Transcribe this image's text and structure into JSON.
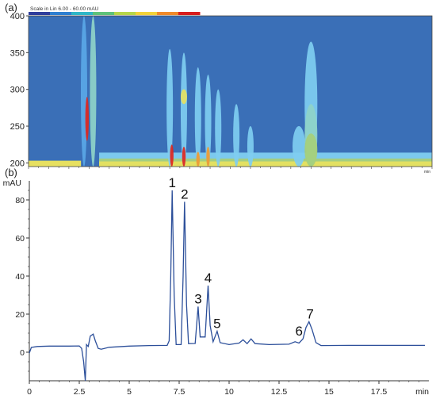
{
  "chart_data": [
    {
      "panel_label": "(a)",
      "type": "heatmap",
      "scale_label": "Scale in Lin 6.00 - 60.00 mAU",
      "colors": {
        "background": "#3a6fb7",
        "levels": [
          "#3a6fb7",
          "#5aa7e6",
          "#7fcdf0",
          "#8fd3c8",
          "#a6cf7a",
          "#e7e060",
          "#f29a2e",
          "#e0261e"
        ]
      },
      "colorbar": [
        "#2f3e9c",
        "#2e7fd0",
        "#2fb6c7",
        "#5fc27a",
        "#b7d64a",
        "#f2d23a",
        "#f08a2a",
        "#d81e1e"
      ],
      "y_axis": {
        "ticks": [
          "200",
          "250",
          "300",
          "350",
          "400"
        ],
        "range": [
          195,
          400
        ]
      },
      "x_axis": {
        "range": [
          0,
          20
        ],
        "end_label": "min"
      },
      "bands": [
        {
          "t": 2.75,
          "lo": 195,
          "hi": 400,
          "level": 1
        },
        {
          "t": 2.9,
          "lo": 230,
          "hi": 290,
          "level": 7
        },
        {
          "t": 3.2,
          "lo": 195,
          "hi": 400,
          "level": 3
        },
        {
          "t": 7.0,
          "lo": 195,
          "hi": 355,
          "level": 2
        },
        {
          "t": 7.1,
          "lo": 195,
          "hi": 225,
          "level": 7
        },
        {
          "t": 7.7,
          "lo": 195,
          "hi": 350,
          "level": 2
        },
        {
          "t": 7.7,
          "lo": 280,
          "hi": 300,
          "level": 5
        },
        {
          "t": 7.7,
          "lo": 195,
          "hi": 222,
          "level": 7
        },
        {
          "t": 8.4,
          "lo": 195,
          "hi": 330,
          "level": 2
        },
        {
          "t": 8.4,
          "lo": 195,
          "hi": 215,
          "level": 6
        },
        {
          "t": 8.9,
          "lo": 195,
          "hi": 320,
          "level": 2
        },
        {
          "t": 8.9,
          "lo": 195,
          "hi": 222,
          "level": 6
        },
        {
          "t": 9.4,
          "lo": 195,
          "hi": 300,
          "level": 2
        },
        {
          "t": 10.3,
          "lo": 195,
          "hi": 280,
          "level": 2
        },
        {
          "t": 11.0,
          "lo": 195,
          "hi": 250,
          "level": 2
        },
        {
          "t": 13.4,
          "lo": 195,
          "hi": 250,
          "level": 2
        },
        {
          "t": 14.0,
          "lo": 195,
          "hi": 365,
          "level": 2
        },
        {
          "t": 14.0,
          "lo": 195,
          "hi": 280,
          "level": 3
        },
        {
          "t": 14.0,
          "lo": 195,
          "hi": 240,
          "level": 4
        }
      ]
    },
    {
      "panel_label": "(b)",
      "type": "line",
      "ylabel": "mAU",
      "xlabel": "min",
      "xlim": [
        0,
        20
      ],
      "ylim": [
        -15,
        90
      ],
      "x_ticks": [
        "0",
        "2.5",
        "5",
        "7.5",
        "10",
        "12.5",
        "15",
        "17.5",
        "min"
      ],
      "y_ticks": [
        "0",
        "20",
        "40",
        "60",
        "80"
      ],
      "line_color": "#2c4f9a",
      "baseline": 3.2,
      "points": [
        [
          0,
          -0.5
        ],
        [
          0.1,
          2.5
        ],
        [
          0.4,
          3.0
        ],
        [
          1.0,
          3.2
        ],
        [
          2.0,
          3.2
        ],
        [
          2.5,
          3.3
        ],
        [
          2.62,
          2.0
        ],
        [
          2.72,
          -5.0
        ],
        [
          2.8,
          -15.0
        ],
        [
          2.86,
          4.0
        ],
        [
          2.95,
          3.0
        ],
        [
          3.05,
          8.5
        ],
        [
          3.2,
          9.5
        ],
        [
          3.3,
          6.0
        ],
        [
          3.45,
          2.0
        ],
        [
          3.6,
          1.6
        ],
        [
          4.0,
          2.6
        ],
        [
          5.0,
          3.2
        ],
        [
          6.0,
          3.5
        ],
        [
          6.9,
          3.6
        ],
        [
          7.0,
          6.0
        ],
        [
          7.08,
          40.0
        ],
        [
          7.15,
          85.0
        ],
        [
          7.25,
          30.0
        ],
        [
          7.35,
          4.0
        ],
        [
          7.6,
          4.0
        ],
        [
          7.7,
          40.0
        ],
        [
          7.77,
          79.0
        ],
        [
          7.87,
          25.0
        ],
        [
          7.97,
          4.5
        ],
        [
          8.3,
          4.6
        ],
        [
          8.45,
          24.0
        ],
        [
          8.55,
          8.0
        ],
        [
          8.8,
          8.0
        ],
        [
          8.95,
          35.0
        ],
        [
          9.05,
          14.0
        ],
        [
          9.2,
          5.5
        ],
        [
          9.4,
          11.0
        ],
        [
          9.55,
          5.0
        ],
        [
          10.0,
          4.0
        ],
        [
          10.5,
          4.8
        ],
        [
          10.7,
          6.5
        ],
        [
          10.9,
          4.5
        ],
        [
          11.1,
          7.0
        ],
        [
          11.3,
          4.5
        ],
        [
          12.0,
          4.0
        ],
        [
          13.0,
          4.2
        ],
        [
          13.3,
          5.5
        ],
        [
          13.5,
          4.8
        ],
        [
          13.7,
          7.0
        ],
        [
          13.85,
          13.0
        ],
        [
          14.0,
          16.0
        ],
        [
          14.15,
          12.0
        ],
        [
          14.35,
          5.0
        ],
        [
          14.6,
          3.5
        ],
        [
          16.0,
          3.6
        ],
        [
          18.0,
          3.6
        ],
        [
          19.8,
          3.6
        ]
      ],
      "annotations": [
        {
          "text": "1",
          "x": 7.15,
          "y": 85
        },
        {
          "text": "2",
          "x": 7.77,
          "y": 79
        },
        {
          "text": "3",
          "x": 8.45,
          "y": 24
        },
        {
          "text": "4",
          "x": 8.95,
          "y": 35
        },
        {
          "text": "5",
          "x": 9.4,
          "y": 11
        },
        {
          "text": "6",
          "x": 13.5,
          "y": 7
        },
        {
          "text": "7",
          "x": 14.05,
          "y": 16
        }
      ]
    }
  ]
}
